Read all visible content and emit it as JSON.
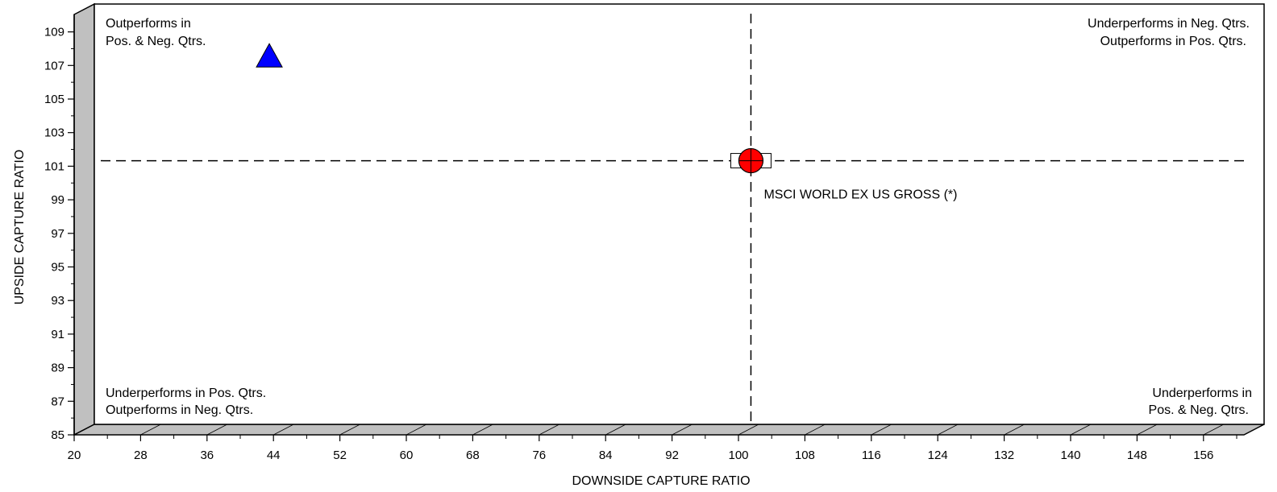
{
  "chart_data": {
    "type": "scatter",
    "xlabel": "DOWNSIDE CAPTURE RATIO",
    "ylabel": "UPSIDE CAPTURE RATIO",
    "xlim": [
      20,
      160
    ],
    "ylim": [
      85,
      110
    ],
    "xticks": [
      "20",
      "28",
      "36",
      "44",
      "52",
      "60",
      "68",
      "76",
      "84",
      "92",
      "100",
      "108",
      "116",
      "124",
      "132",
      "140",
      "148",
      "156"
    ],
    "yticks": [
      "85",
      "87",
      "89",
      "91",
      "93",
      "95",
      "97",
      "99",
      "101",
      "103",
      "105",
      "107",
      "109"
    ],
    "reference_lines": {
      "x": 101.5,
      "y": 100.8
    },
    "quadrant_labels": {
      "top_left": [
        "Outperforms in",
        "Pos. & Neg. Qtrs."
      ],
      "top_right": [
        "Underperforms in Neg. Qtrs.",
        "Outperforms in Pos. Qtrs."
      ],
      "bottom_left": [
        "Underperforms in Pos. Qtrs.",
        "Outperforms in Neg. Qtrs."
      ],
      "bottom_right": [
        "Underperforms in",
        "Pos. & Neg. Qtrs."
      ]
    },
    "points": [
      {
        "x": 43.5,
        "y": 107.0,
        "marker": "triangle",
        "color": "#0000ff",
        "label": ""
      },
      {
        "x": 101.5,
        "y": 100.8,
        "marker": "circle-crosshair",
        "color": "#ff0000",
        "label": "MSCI WORLD EX US GROSS (*)"
      }
    ],
    "grid": false
  }
}
